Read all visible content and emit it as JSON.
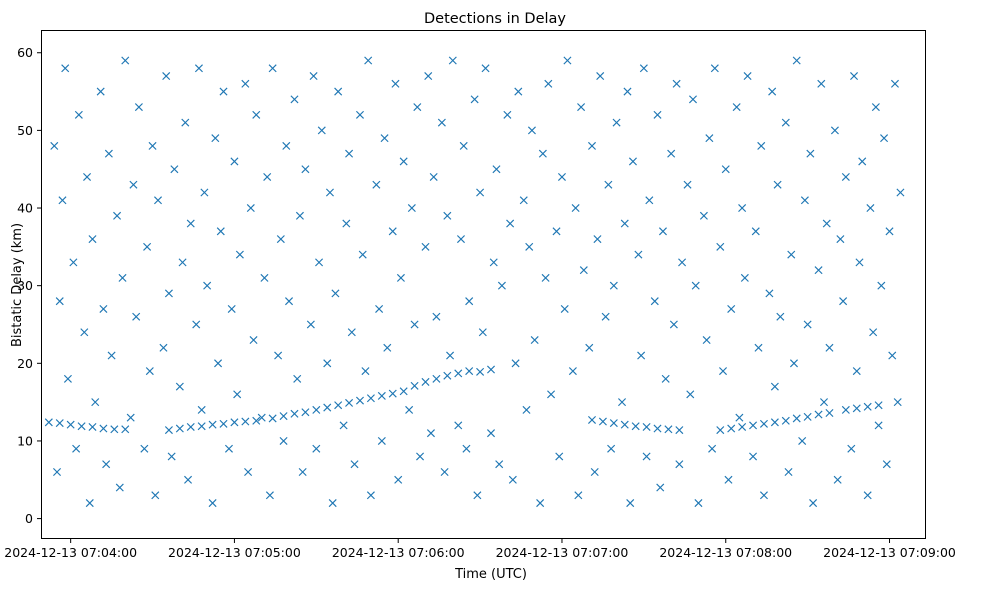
{
  "chart_data": {
    "type": "scatter",
    "title": "Detections in Delay",
    "xlabel": "Time (UTC)",
    "ylabel": "Bistatic Delay (km)",
    "marker": "x",
    "marker_color": "#1f77b4",
    "x_unit": "seconds since 2024-12-13 07:04:00 UTC",
    "xlim": [
      -10.5,
      313
    ],
    "ylim": [
      -2.5,
      62.8
    ],
    "xticks": [
      {
        "value": 0,
        "label": "2024-12-13 07:04:00"
      },
      {
        "value": 60,
        "label": "2024-12-13 07:05:00"
      },
      {
        "value": 120,
        "label": "2024-12-13 07:06:00"
      },
      {
        "value": 180,
        "label": "2024-12-13 07:07:00"
      },
      {
        "value": 240,
        "label": "2024-12-13 07:08:00"
      },
      {
        "value": 300,
        "label": "2024-12-13 07:09:00"
      }
    ],
    "yticks": [
      {
        "value": 0,
        "label": "0"
      },
      {
        "value": 10,
        "label": "10"
      },
      {
        "value": 20,
        "label": "20"
      },
      {
        "value": 30,
        "label": "30"
      },
      {
        "value": 40,
        "label": "40"
      },
      {
        "value": 50,
        "label": "50"
      },
      {
        "value": 60,
        "label": "60"
      }
    ],
    "legend": "none",
    "grid": false,
    "tracks": [
      {
        "name": "track-1",
        "points": [
          [
            -8,
            12.4
          ],
          [
            -4,
            12.3
          ],
          [
            0,
            12.1
          ],
          [
            4,
            11.9
          ],
          [
            8,
            11.8
          ],
          [
            12,
            11.6
          ],
          [
            16,
            11.5
          ],
          [
            20,
            11.5
          ]
        ]
      },
      {
        "name": "track-2",
        "points": [
          [
            36,
            11.4
          ],
          [
            40,
            11.6
          ],
          [
            44,
            11.8
          ],
          [
            48,
            11.9
          ],
          [
            52,
            12.1
          ],
          [
            56,
            12.2
          ],
          [
            60,
            12.4
          ],
          [
            64,
            12.5
          ],
          [
            68,
            12.6
          ]
        ]
      },
      {
        "name": "track-3",
        "points": [
          [
            74,
            12.9
          ],
          [
            78,
            13.2
          ],
          [
            82,
            13.5
          ],
          [
            86,
            13.7
          ],
          [
            90,
            14.0
          ],
          [
            94,
            14.3
          ],
          [
            98,
            14.6
          ],
          [
            102,
            14.9
          ],
          [
            106,
            15.2
          ],
          [
            110,
            15.5
          ],
          [
            114,
            15.8
          ],
          [
            118,
            16.1
          ],
          [
            122,
            16.4
          ]
        ]
      },
      {
        "name": "track-4",
        "points": [
          [
            126,
            17.1
          ],
          [
            130,
            17.6
          ],
          [
            134,
            18.0
          ],
          [
            138,
            18.4
          ],
          [
            142,
            18.7
          ],
          [
            146,
            19.0
          ],
          [
            150,
            18.9
          ],
          [
            154,
            19.2
          ]
        ]
      },
      {
        "name": "track-5",
        "points": [
          [
            191,
            12.7
          ],
          [
            195,
            12.5
          ],
          [
            199,
            12.3
          ],
          [
            203,
            12.1
          ],
          [
            207,
            11.9
          ],
          [
            211,
            11.8
          ],
          [
            215,
            11.6
          ],
          [
            219,
            11.5
          ],
          [
            223,
            11.4
          ]
        ]
      },
      {
        "name": "track-6",
        "points": [
          [
            238,
            11.4
          ],
          [
            242,
            11.6
          ],
          [
            246,
            11.8
          ],
          [
            250,
            12.0
          ],
          [
            254,
            12.2
          ],
          [
            258,
            12.4
          ],
          [
            262,
            12.6
          ],
          [
            266,
            12.9
          ],
          [
            270,
            13.1
          ],
          [
            274,
            13.4
          ],
          [
            278,
            13.6
          ]
        ]
      },
      {
        "name": "track-7",
        "points": [
          [
            284,
            14.0
          ],
          [
            288,
            14.2
          ],
          [
            292,
            14.4
          ],
          [
            296,
            14.6
          ]
        ]
      }
    ],
    "clutter": [
      [
        -6,
        48
      ],
      [
        -5,
        6
      ],
      [
        -4,
        28
      ],
      [
        -3,
        41
      ],
      [
        -2,
        58
      ],
      [
        -1,
        18
      ],
      [
        1,
        33
      ],
      [
        2,
        9
      ],
      [
        3,
        52
      ],
      [
        5,
        24
      ],
      [
        6,
        44
      ],
      [
        7,
        2
      ],
      [
        8,
        36
      ],
      [
        9,
        15
      ],
      [
        11,
        55
      ],
      [
        12,
        27
      ],
      [
        13,
        7
      ],
      [
        14,
        47
      ],
      [
        15,
        21
      ],
      [
        17,
        39
      ],
      [
        18,
        4
      ],
      [
        19,
        31
      ],
      [
        20,
        59
      ],
      [
        22,
        13
      ],
      [
        23,
        43
      ],
      [
        24,
        26
      ],
      [
        25,
        53
      ],
      [
        27,
        9
      ],
      [
        28,
        35
      ],
      [
        29,
        19
      ],
      [
        30,
        48
      ],
      [
        31,
        3
      ],
      [
        32,
        41
      ],
      [
        34,
        22
      ],
      [
        35,
        57
      ],
      [
        36,
        29
      ],
      [
        37,
        8
      ],
      [
        38,
        45
      ],
      [
        40,
        17
      ],
      [
        41,
        33
      ],
      [
        42,
        51
      ],
      [
        43,
        5
      ],
      [
        44,
        38
      ],
      [
        46,
        25
      ],
      [
        47,
        58
      ],
      [
        48,
        14
      ],
      [
        49,
        42
      ],
      [
        50,
        30
      ],
      [
        52,
        2
      ],
      [
        53,
        49
      ],
      [
        54,
        20
      ],
      [
        55,
        37
      ],
      [
        56,
        55
      ],
      [
        58,
        9
      ],
      [
        59,
        27
      ],
      [
        60,
        46
      ],
      [
        61,
        16
      ],
      [
        62,
        34
      ],
      [
        64,
        56
      ],
      [
        65,
        6
      ],
      [
        66,
        40
      ],
      [
        67,
        23
      ],
      [
        68,
        52
      ],
      [
        70,
        13
      ],
      [
        71,
        31
      ],
      [
        72,
        44
      ],
      [
        73,
        3
      ],
      [
        74,
        58
      ],
      [
        76,
        21
      ],
      [
        77,
        36
      ],
      [
        78,
        10
      ],
      [
        79,
        48
      ],
      [
        80,
        28
      ],
      [
        82,
        54
      ],
      [
        83,
        18
      ],
      [
        84,
        39
      ],
      [
        85,
        6
      ],
      [
        86,
        45
      ],
      [
        88,
        25
      ],
      [
        89,
        57
      ],
      [
        90,
        9
      ],
      [
        91,
        33
      ],
      [
        92,
        50
      ],
      [
        94,
        20
      ],
      [
        95,
        42
      ],
      [
        96,
        2
      ],
      [
        97,
        29
      ],
      [
        98,
        55
      ],
      [
        100,
        12
      ],
      [
        101,
        38
      ],
      [
        102,
        47
      ],
      [
        103,
        24
      ],
      [
        104,
        7
      ],
      [
        106,
        52
      ],
      [
        107,
        34
      ],
      [
        108,
        19
      ],
      [
        109,
        59
      ],
      [
        110,
        3
      ],
      [
        112,
        43
      ],
      [
        113,
        27
      ],
      [
        114,
        10
      ],
      [
        115,
        49
      ],
      [
        116,
        22
      ],
      [
        118,
        37
      ],
      [
        119,
        56
      ],
      [
        120,
        5
      ],
      [
        121,
        31
      ],
      [
        122,
        46
      ],
      [
        124,
        14
      ],
      [
        125,
        40
      ],
      [
        126,
        25
      ],
      [
        127,
        53
      ],
      [
        128,
        8
      ],
      [
        130,
        35
      ],
      [
        131,
        57
      ],
      [
        132,
        11
      ],
      [
        133,
        44
      ],
      [
        134,
        26
      ],
      [
        136,
        51
      ],
      [
        137,
        6
      ],
      [
        138,
        39
      ],
      [
        139,
        21
      ],
      [
        140,
        59
      ],
      [
        142,
        12
      ],
      [
        143,
        36
      ],
      [
        144,
        48
      ],
      [
        145,
        9
      ],
      [
        146,
        28
      ],
      [
        148,
        54
      ],
      [
        149,
        3
      ],
      [
        150,
        42
      ],
      [
        151,
        24
      ],
      [
        152,
        58
      ],
      [
        154,
        11
      ],
      [
        155,
        33
      ],
      [
        156,
        45
      ],
      [
        157,
        7
      ],
      [
        158,
        30
      ],
      [
        160,
        52
      ],
      [
        161,
        38
      ],
      [
        162,
        5
      ],
      [
        163,
        20
      ],
      [
        164,
        55
      ],
      [
        166,
        41
      ],
      [
        167,
        14
      ],
      [
        168,
        35
      ],
      [
        169,
        50
      ],
      [
        170,
        23
      ],
      [
        172,
        2
      ],
      [
        173,
        47
      ],
      [
        174,
        31
      ],
      [
        175,
        56
      ],
      [
        176,
        16
      ],
      [
        178,
        37
      ],
      [
        179,
        8
      ],
      [
        180,
        44
      ],
      [
        181,
        27
      ],
      [
        182,
        59
      ],
      [
        184,
        19
      ],
      [
        185,
        40
      ],
      [
        186,
        3
      ],
      [
        187,
        53
      ],
      [
        188,
        32
      ],
      [
        190,
        22
      ],
      [
        191,
        48
      ],
      [
        192,
        6
      ],
      [
        193,
        36
      ],
      [
        194,
        57
      ],
      [
        196,
        26
      ],
      [
        197,
        43
      ],
      [
        198,
        9
      ],
      [
        199,
        30
      ],
      [
        200,
        51
      ],
      [
        202,
        15
      ],
      [
        203,
        38
      ],
      [
        204,
        55
      ],
      [
        205,
        2
      ],
      [
        206,
        46
      ],
      [
        208,
        34
      ],
      [
        209,
        21
      ],
      [
        210,
        58
      ],
      [
        211,
        8
      ],
      [
        212,
        41
      ],
      [
        214,
        28
      ],
      [
        215,
        52
      ],
      [
        216,
        4
      ],
      [
        217,
        37
      ],
      [
        218,
        18
      ],
      [
        220,
        47
      ],
      [
        221,
        25
      ],
      [
        222,
        56
      ],
      [
        223,
        7
      ],
      [
        224,
        33
      ],
      [
        226,
        43
      ],
      [
        227,
        16
      ],
      [
        228,
        54
      ],
      [
        229,
        30
      ],
      [
        230,
        2
      ],
      [
        232,
        39
      ],
      [
        233,
        23
      ],
      [
        234,
        49
      ],
      [
        235,
        9
      ],
      [
        236,
        58
      ],
      [
        238,
        35
      ],
      [
        239,
        19
      ],
      [
        240,
        45
      ],
      [
        241,
        5
      ],
      [
        242,
        27
      ],
      [
        244,
        53
      ],
      [
        245,
        13
      ],
      [
        246,
        40
      ],
      [
        247,
        31
      ],
      [
        248,
        57
      ],
      [
        250,
        8
      ],
      [
        251,
        37
      ],
      [
        252,
        22
      ],
      [
        253,
        48
      ],
      [
        254,
        3
      ],
      [
        256,
        29
      ],
      [
        257,
        55
      ],
      [
        258,
        17
      ],
      [
        259,
        43
      ],
      [
        260,
        26
      ],
      [
        262,
        51
      ],
      [
        263,
        6
      ],
      [
        264,
        34
      ],
      [
        265,
        20
      ],
      [
        266,
        59
      ],
      [
        268,
        10
      ],
      [
        269,
        41
      ],
      [
        270,
        25
      ],
      [
        271,
        47
      ],
      [
        272,
        2
      ],
      [
        274,
        32
      ],
      [
        275,
        56
      ],
      [
        276,
        15
      ],
      [
        277,
        38
      ],
      [
        278,
        22
      ],
      [
        280,
        50
      ],
      [
        281,
        5
      ],
      [
        282,
        36
      ],
      [
        283,
        28
      ],
      [
        284,
        44
      ],
      [
        286,
        9
      ],
      [
        287,
        57
      ],
      [
        288,
        19
      ],
      [
        289,
        33
      ],
      [
        290,
        46
      ],
      [
        292,
        3
      ],
      [
        293,
        40
      ],
      [
        294,
        24
      ],
      [
        295,
        53
      ],
      [
        296,
        12
      ],
      [
        297,
        30
      ],
      [
        298,
        49
      ],
      [
        299,
        7
      ],
      [
        300,
        37
      ],
      [
        301,
        21
      ],
      [
        302,
        56
      ],
      [
        303,
        15
      ],
      [
        304,
        42
      ]
    ]
  }
}
